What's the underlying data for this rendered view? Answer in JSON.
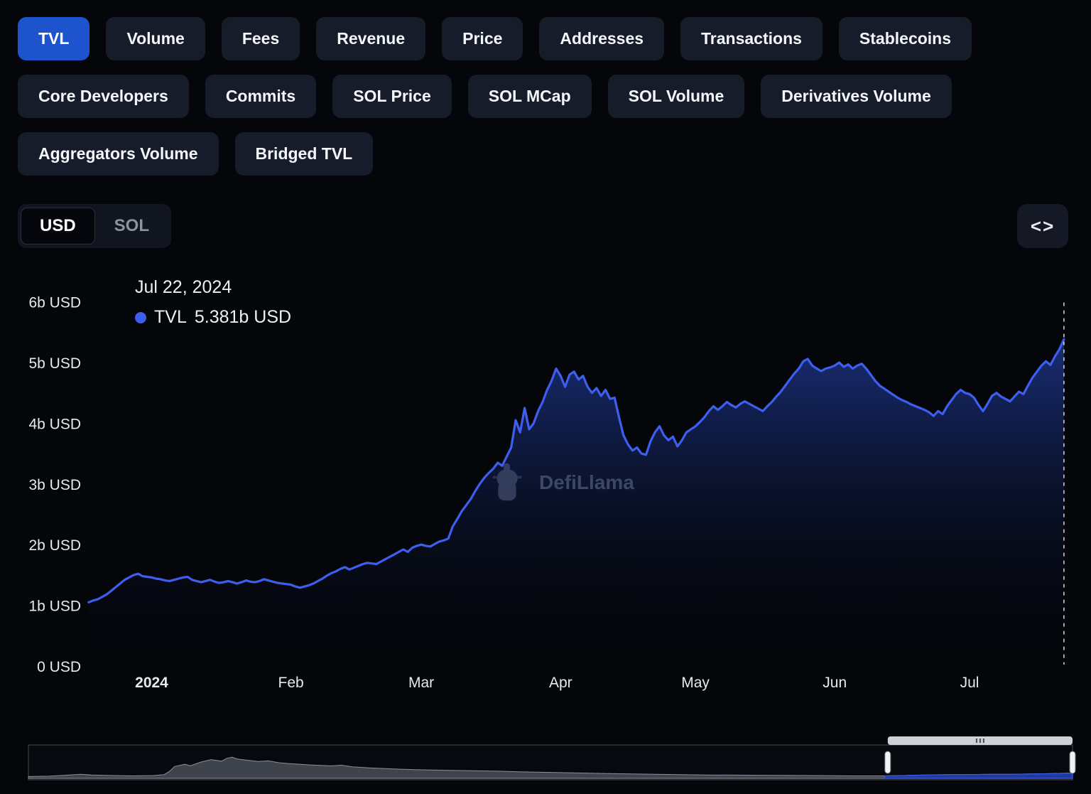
{
  "tabs": {
    "row1": [
      "TVL",
      "Volume",
      "Fees",
      "Revenue",
      "Price",
      "Addresses",
      "Transactions",
      "Stablecoins"
    ],
    "row2": [
      "Core Developers",
      "Commits",
      "SOL Price",
      "SOL MCap",
      "SOL Volume",
      "Derivatives Volume"
    ],
    "row3": [
      "Aggregators Volume",
      "Bridged TVL"
    ],
    "active": "TVL"
  },
  "toggle": {
    "options": [
      "USD",
      "SOL"
    ],
    "selected": "USD"
  },
  "embed": {
    "icon_label": "<>"
  },
  "watermark": {
    "text": "DefiLlama"
  },
  "colors": {
    "active_tab": "#1d53cc",
    "line": "#3e5ef0",
    "area_top": "#2b4fd0",
    "area_bottom": "#060a18",
    "dashed": "#d8dbe4",
    "nav_gray": "#3f434c",
    "nav_blue": "#1e3a9a"
  },
  "chart_data": {
    "type": "area",
    "series": [
      {
        "name": "TVL",
        "unit": "b USD",
        "points": [
          [
            0,
            1.05
          ],
          [
            1,
            1.08
          ],
          [
            2,
            1.1
          ],
          [
            3,
            1.14
          ],
          [
            4,
            1.18
          ],
          [
            5,
            1.24
          ],
          [
            6,
            1.3
          ],
          [
            7,
            1.36
          ],
          [
            8,
            1.42
          ],
          [
            9,
            1.46
          ],
          [
            10,
            1.5
          ],
          [
            11,
            1.52
          ],
          [
            12,
            1.48
          ],
          [
            13,
            1.47
          ],
          [
            14,
            1.46
          ],
          [
            15,
            1.44
          ],
          [
            16,
            1.43
          ],
          [
            17,
            1.41
          ],
          [
            18,
            1.4
          ],
          [
            19,
            1.42
          ],
          [
            20,
            1.44
          ],
          [
            21,
            1.46
          ],
          [
            22,
            1.47
          ],
          [
            23,
            1.42
          ],
          [
            24,
            1.4
          ],
          [
            25,
            1.38
          ],
          [
            26,
            1.4
          ],
          [
            27,
            1.42
          ],
          [
            28,
            1.39
          ],
          [
            29,
            1.37
          ],
          [
            30,
            1.38
          ],
          [
            31,
            1.4
          ],
          [
            32,
            1.38
          ],
          [
            33,
            1.36
          ],
          [
            34,
            1.38
          ],
          [
            35,
            1.41
          ],
          [
            36,
            1.39
          ],
          [
            37,
            1.38
          ],
          [
            38,
            1.4
          ],
          [
            39,
            1.43
          ],
          [
            40,
            1.41
          ],
          [
            41,
            1.39
          ],
          [
            42,
            1.37
          ],
          [
            43,
            1.36
          ],
          [
            44,
            1.35
          ],
          [
            45,
            1.34
          ],
          [
            46,
            1.31
          ],
          [
            47,
            1.29
          ],
          [
            48,
            1.31
          ],
          [
            49,
            1.33
          ],
          [
            50,
            1.36
          ],
          [
            51,
            1.4
          ],
          [
            52,
            1.44
          ],
          [
            53,
            1.49
          ],
          [
            54,
            1.53
          ],
          [
            55,
            1.56
          ],
          [
            56,
            1.6
          ],
          [
            57,
            1.63
          ],
          [
            58,
            1.59
          ],
          [
            59,
            1.62
          ],
          [
            60,
            1.65
          ],
          [
            61,
            1.68
          ],
          [
            62,
            1.7
          ],
          [
            63,
            1.69
          ],
          [
            64,
            1.68
          ],
          [
            65,
            1.72
          ],
          [
            66,
            1.76
          ],
          [
            67,
            1.8
          ],
          [
            68,
            1.84
          ],
          [
            69,
            1.88
          ],
          [
            70,
            1.92
          ],
          [
            71,
            1.88
          ],
          [
            72,
            1.95
          ],
          [
            73,
            1.98
          ],
          [
            74,
            2.0
          ],
          [
            75,
            1.98
          ],
          [
            76,
            1.97
          ],
          [
            77,
            2.01
          ],
          [
            78,
            2.05
          ],
          [
            79,
            2.07
          ],
          [
            80,
            2.1
          ],
          [
            81,
            2.3
          ],
          [
            82,
            2.42
          ],
          [
            83,
            2.55
          ],
          [
            84,
            2.65
          ],
          [
            85,
            2.75
          ],
          [
            86,
            2.88
          ],
          [
            87,
            3.0
          ],
          [
            88,
            3.1
          ],
          [
            89,
            3.18
          ],
          [
            90,
            3.25
          ],
          [
            91,
            3.35
          ],
          [
            92,
            3.3
          ],
          [
            93,
            3.45
          ],
          [
            94,
            3.6
          ],
          [
            95,
            4.05
          ],
          [
            96,
            3.85
          ],
          [
            97,
            4.25
          ],
          [
            98,
            3.9
          ],
          [
            99,
            4.0
          ],
          [
            100,
            4.2
          ],
          [
            101,
            4.35
          ],
          [
            102,
            4.55
          ],
          [
            103,
            4.7
          ],
          [
            104,
            4.9
          ],
          [
            105,
            4.78
          ],
          [
            106,
            4.6
          ],
          [
            107,
            4.8
          ],
          [
            108,
            4.85
          ],
          [
            109,
            4.72
          ],
          [
            110,
            4.78
          ],
          [
            111,
            4.6
          ],
          [
            112,
            4.5
          ],
          [
            113,
            4.58
          ],
          [
            114,
            4.45
          ],
          [
            115,
            4.55
          ],
          [
            116,
            4.4
          ],
          [
            117,
            4.42
          ],
          [
            118,
            4.1
          ],
          [
            119,
            3.8
          ],
          [
            120,
            3.65
          ],
          [
            121,
            3.55
          ],
          [
            122,
            3.6
          ],
          [
            123,
            3.5
          ],
          [
            124,
            3.48
          ],
          [
            125,
            3.7
          ],
          [
            126,
            3.85
          ],
          [
            127,
            3.95
          ],
          [
            128,
            3.8
          ],
          [
            129,
            3.72
          ],
          [
            130,
            3.78
          ],
          [
            131,
            3.62
          ],
          [
            132,
            3.72
          ],
          [
            133,
            3.85
          ],
          [
            134,
            3.9
          ],
          [
            135,
            3.95
          ],
          [
            136,
            4.02
          ],
          [
            137,
            4.1
          ],
          [
            138,
            4.2
          ],
          [
            139,
            4.28
          ],
          [
            140,
            4.22
          ],
          [
            141,
            4.28
          ],
          [
            142,
            4.35
          ],
          [
            143,
            4.3
          ],
          [
            144,
            4.26
          ],
          [
            145,
            4.32
          ],
          [
            146,
            4.36
          ],
          [
            147,
            4.32
          ],
          [
            148,
            4.28
          ],
          [
            149,
            4.24
          ],
          [
            150,
            4.2
          ],
          [
            151,
            4.28
          ],
          [
            152,
            4.35
          ],
          [
            153,
            4.44
          ],
          [
            154,
            4.52
          ],
          [
            155,
            4.62
          ],
          [
            156,
            4.72
          ],
          [
            157,
            4.82
          ],
          [
            158,
            4.9
          ],
          [
            159,
            5.02
          ],
          [
            160,
            5.06
          ],
          [
            161,
            4.95
          ],
          [
            162,
            4.9
          ],
          [
            163,
            4.86
          ],
          [
            164,
            4.9
          ],
          [
            165,
            4.92
          ],
          [
            166,
            4.95
          ],
          [
            167,
            5.0
          ],
          [
            168,
            4.93
          ],
          [
            169,
            4.97
          ],
          [
            170,
            4.9
          ],
          [
            171,
            4.95
          ],
          [
            172,
            4.98
          ],
          [
            173,
            4.9
          ],
          [
            174,
            4.8
          ],
          [
            175,
            4.7
          ],
          [
            176,
            4.62
          ],
          [
            177,
            4.57
          ],
          [
            178,
            4.52
          ],
          [
            179,
            4.47
          ],
          [
            180,
            4.42
          ],
          [
            181,
            4.38
          ],
          [
            182,
            4.35
          ],
          [
            183,
            4.31
          ],
          [
            184,
            4.28
          ],
          [
            185,
            4.25
          ],
          [
            186,
            4.22
          ],
          [
            187,
            4.18
          ],
          [
            188,
            4.12
          ],
          [
            189,
            4.2
          ],
          [
            190,
            4.15
          ],
          [
            191,
            4.28
          ],
          [
            192,
            4.38
          ],
          [
            193,
            4.48
          ],
          [
            194,
            4.55
          ],
          [
            195,
            4.5
          ],
          [
            196,
            4.48
          ],
          [
            197,
            4.42
          ],
          [
            198,
            4.3
          ],
          [
            199,
            4.2
          ],
          [
            200,
            4.32
          ],
          [
            201,
            4.45
          ],
          [
            202,
            4.5
          ],
          [
            203,
            4.44
          ],
          [
            204,
            4.4
          ],
          [
            205,
            4.36
          ],
          [
            206,
            4.44
          ],
          [
            207,
            4.52
          ],
          [
            208,
            4.48
          ],
          [
            209,
            4.62
          ],
          [
            210,
            4.75
          ],
          [
            211,
            4.85
          ],
          [
            212,
            4.95
          ],
          [
            213,
            5.02
          ],
          [
            214,
            4.96
          ],
          [
            215,
            5.1
          ],
          [
            216,
            5.22
          ],
          [
            217,
            5.381
          ]
        ]
      }
    ],
    "x_unit": "days from 2023-12-18",
    "ylim": [
      0,
      6
    ],
    "y_ticks": [
      {
        "label": "0 USD",
        "value": 0
      },
      {
        "label": "1b USD",
        "value": 1
      },
      {
        "label": "2b USD",
        "value": 2
      },
      {
        "label": "3b USD",
        "value": 3
      },
      {
        "label": "4b USD",
        "value": 4
      },
      {
        "label": "5b USD",
        "value": 5
      },
      {
        "label": "6b USD",
        "value": 6
      }
    ],
    "x_ticks": [
      {
        "label": "2024",
        "day": 14,
        "bold": true
      },
      {
        "label": "Feb",
        "day": 45
      },
      {
        "label": "Mar",
        "day": 74
      },
      {
        "label": "Apr",
        "day": 105
      },
      {
        "label": "May",
        "day": 135
      },
      {
        "label": "Jun",
        "day": 166
      },
      {
        "label": "Jul",
        "day": 196
      }
    ],
    "hover": {
      "day": 217,
      "date_label": "Jul 22, 2024",
      "series": "TVL",
      "value": 5.381,
      "value_label": "5.381b USD"
    },
    "navigator": {
      "selection": [
        0.823,
        1.0
      ],
      "points": [
        [
          0,
          0.06
        ],
        [
          0.02,
          0.07
        ],
        [
          0.035,
          0.1
        ],
        [
          0.05,
          0.13
        ],
        [
          0.06,
          0.11
        ],
        [
          0.08,
          0.09
        ],
        [
          0.1,
          0.08
        ],
        [
          0.12,
          0.09
        ],
        [
          0.13,
          0.12
        ],
        [
          0.135,
          0.22
        ],
        [
          0.14,
          0.38
        ],
        [
          0.15,
          0.45
        ],
        [
          0.155,
          0.4
        ],
        [
          0.165,
          0.52
        ],
        [
          0.175,
          0.6
        ],
        [
          0.185,
          0.55
        ],
        [
          0.19,
          0.64
        ],
        [
          0.195,
          0.68
        ],
        [
          0.2,
          0.62
        ],
        [
          0.21,
          0.58
        ],
        [
          0.22,
          0.54
        ],
        [
          0.23,
          0.56
        ],
        [
          0.24,
          0.5
        ],
        [
          0.25,
          0.47
        ],
        [
          0.27,
          0.43
        ],
        [
          0.29,
          0.4
        ],
        [
          0.3,
          0.42
        ],
        [
          0.31,
          0.37
        ],
        [
          0.33,
          0.33
        ],
        [
          0.35,
          0.3
        ],
        [
          0.37,
          0.28
        ],
        [
          0.4,
          0.26
        ],
        [
          0.43,
          0.24
        ],
        [
          0.45,
          0.23
        ],
        [
          0.47,
          0.21
        ],
        [
          0.5,
          0.19
        ],
        [
          0.53,
          0.17
        ],
        [
          0.56,
          0.15
        ],
        [
          0.6,
          0.13
        ],
        [
          0.65,
          0.11
        ],
        [
          0.7,
          0.1
        ],
        [
          0.75,
          0.09
        ],
        [
          0.79,
          0.08
        ],
        [
          0.82,
          0.08
        ],
        [
          0.84,
          0.09
        ],
        [
          0.86,
          0.11
        ],
        [
          0.88,
          0.12
        ],
        [
          0.9,
          0.12
        ],
        [
          0.92,
          0.13
        ],
        [
          0.94,
          0.13
        ],
        [
          0.96,
          0.14
        ],
        [
          0.98,
          0.15
        ],
        [
          1.0,
          0.17
        ]
      ]
    }
  }
}
